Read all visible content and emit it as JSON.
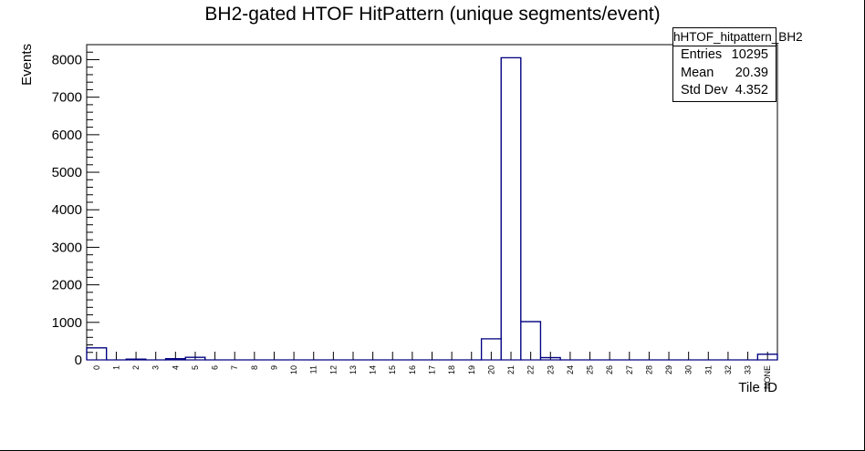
{
  "chart_data": {
    "type": "histogram",
    "title": "BH2-gated HTOF HitPattern (unique segments/event)",
    "xlabel": "Tile ID",
    "ylabel": "Events",
    "categories": [
      "0",
      "1",
      "2",
      "3",
      "4",
      "5",
      "6",
      "7",
      "8",
      "9",
      "10",
      "11",
      "12",
      "13",
      "14",
      "15",
      "16",
      "17",
      "18",
      "19",
      "20",
      "21",
      "22",
      "23",
      "24",
      "25",
      "26",
      "27",
      "28",
      "29",
      "30",
      "31",
      "32",
      "33",
      "NONE"
    ],
    "values": [
      320,
      0,
      20,
      0,
      30,
      70,
      0,
      0,
      0,
      0,
      0,
      0,
      0,
      0,
      0,
      0,
      0,
      0,
      0,
      0,
      560,
      8050,
      1020,
      60,
      0,
      0,
      0,
      0,
      0,
      0,
      0,
      0,
      0,
      0,
      150
    ],
    "ylim": [
      0,
      8400
    ],
    "yticks": [
      0,
      1000,
      2000,
      3000,
      4000,
      5000,
      6000,
      7000,
      8000
    ],
    "line_color": "#000080",
    "grid": false
  },
  "stats": {
    "name": "hHTOF_hitpattern_BH2",
    "rows": [
      {
        "label": "Entries",
        "value": "10295"
      },
      {
        "label": "Mean",
        "value": "20.39"
      },
      {
        "label": "Std Dev",
        "value": "4.352"
      }
    ]
  }
}
